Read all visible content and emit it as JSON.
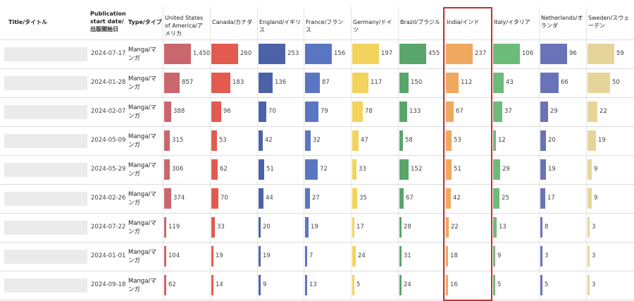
{
  "columns": {
    "title": "Title/タイトル",
    "date": "Publication start date/出版開始日",
    "type": "Type/タイプ"
  },
  "countries": [
    {
      "label": "United States of America/アメリカ",
      "color": "#c9666e"
    },
    {
      "label": "Canada/カナダ",
      "color": "#e35a50"
    },
    {
      "label": "England/イギリス",
      "color": "#4c62a8"
    },
    {
      "label": "France/フランス",
      "color": "#5a76c2"
    },
    {
      "label": "Germany/ドイツ",
      "color": "#f2d35c"
    },
    {
      "label": "Brazil/ブラジル",
      "color": "#5aa56b"
    },
    {
      "label": "India/インド",
      "color": "#efa85f"
    },
    {
      "label": "Italy/イタリア",
      "color": "#6dbb79"
    },
    {
      "label": "Netherlands/オランダ",
      "color": "#6a72b8"
    },
    {
      "label": "Sweden/スウェーデン",
      "color": "#e5d59a"
    }
  ],
  "highlight_column": "India/インド",
  "chart_data": {
    "type": "table",
    "categories": [
      "United States of America/アメリカ",
      "Canada/カナダ",
      "England/イギリス",
      "France/フランス",
      "Germany/ドイツ",
      "Brazil/ブラジル",
      "India/インド",
      "Italy/イタリア",
      "Netherlands/オランダ",
      "Sweden/スウェーデン"
    ],
    "rows": [
      {
        "date": "2024-07-17",
        "type": "Manga/マンガ",
        "values": [
          1450,
          260,
          253,
          156,
          197,
          455,
          237,
          106,
          96,
          59
        ],
        "labels": [
          "1,450",
          "260",
          "253",
          "156",
          "197",
          "455",
          "237",
          "106",
          "96",
          "59"
        ]
      },
      {
        "date": "2024-01-28",
        "type": "Manga/マンガ",
        "values": [
          857,
          183,
          136,
          87,
          117,
          150,
          112,
          43,
          66,
          50
        ],
        "labels": [
          "857",
          "183",
          "136",
          "87",
          "117",
          "150",
          "112",
          "43",
          "66",
          "50"
        ]
      },
      {
        "date": "2024-02-07",
        "type": "Manga/マンガ",
        "values": [
          388,
          96,
          70,
          79,
          78,
          133,
          67,
          37,
          29,
          22
        ],
        "labels": [
          "388",
          "96",
          "70",
          "79",
          "78",
          "133",
          "67",
          "37",
          "29",
          "22"
        ]
      },
      {
        "date": "2024-05-09",
        "type": "Manga/マンガ",
        "values": [
          315,
          53,
          42,
          32,
          47,
          58,
          53,
          12,
          20,
          19
        ],
        "labels": [
          "315",
          "53",
          "42",
          "32",
          "47",
          "58",
          "53",
          "12",
          "20",
          "19"
        ]
      },
      {
        "date": "2024-05-29",
        "type": "Manga/マンガ",
        "values": [
          306,
          62,
          51,
          72,
          33,
          152,
          51,
          29,
          19,
          9
        ],
        "labels": [
          "306",
          "62",
          "51",
          "72",
          "33",
          "152",
          "51",
          "29",
          "19",
          "9"
        ]
      },
      {
        "date": "2024-02-26",
        "type": "Manga/マンガ",
        "values": [
          374,
          70,
          44,
          27,
          35,
          67,
          42,
          25,
          17,
          9
        ],
        "labels": [
          "374",
          "70",
          "44",
          "27",
          "35",
          "67",
          "42",
          "25",
          "17",
          "9"
        ]
      },
      {
        "date": "2024-07-22",
        "type": "Manga/マンガ",
        "values": [
          119,
          33,
          20,
          19,
          17,
          28,
          22,
          13,
          8,
          3
        ],
        "labels": [
          "119",
          "33",
          "20",
          "19",
          "17",
          "28",
          "22",
          "13",
          "8",
          "3"
        ]
      },
      {
        "date": "2024-01-01",
        "type": "Manga/マンガ",
        "values": [
          104,
          19,
          19,
          7,
          24,
          31,
          18,
          9,
          3,
          3
        ],
        "labels": [
          "104",
          "19",
          "19",
          "7",
          "24",
          "31",
          "18",
          "9",
          "3",
          "3"
        ]
      },
      {
        "date": "2024-09-18",
        "type": "Manga/マンガ",
        "values": [
          62,
          14,
          9,
          13,
          5,
          24,
          16,
          5,
          5,
          3
        ],
        "labels": [
          "62",
          "14",
          "9",
          "13",
          "5",
          "24",
          "16",
          "5",
          "5",
          "3"
        ]
      }
    ]
  }
}
